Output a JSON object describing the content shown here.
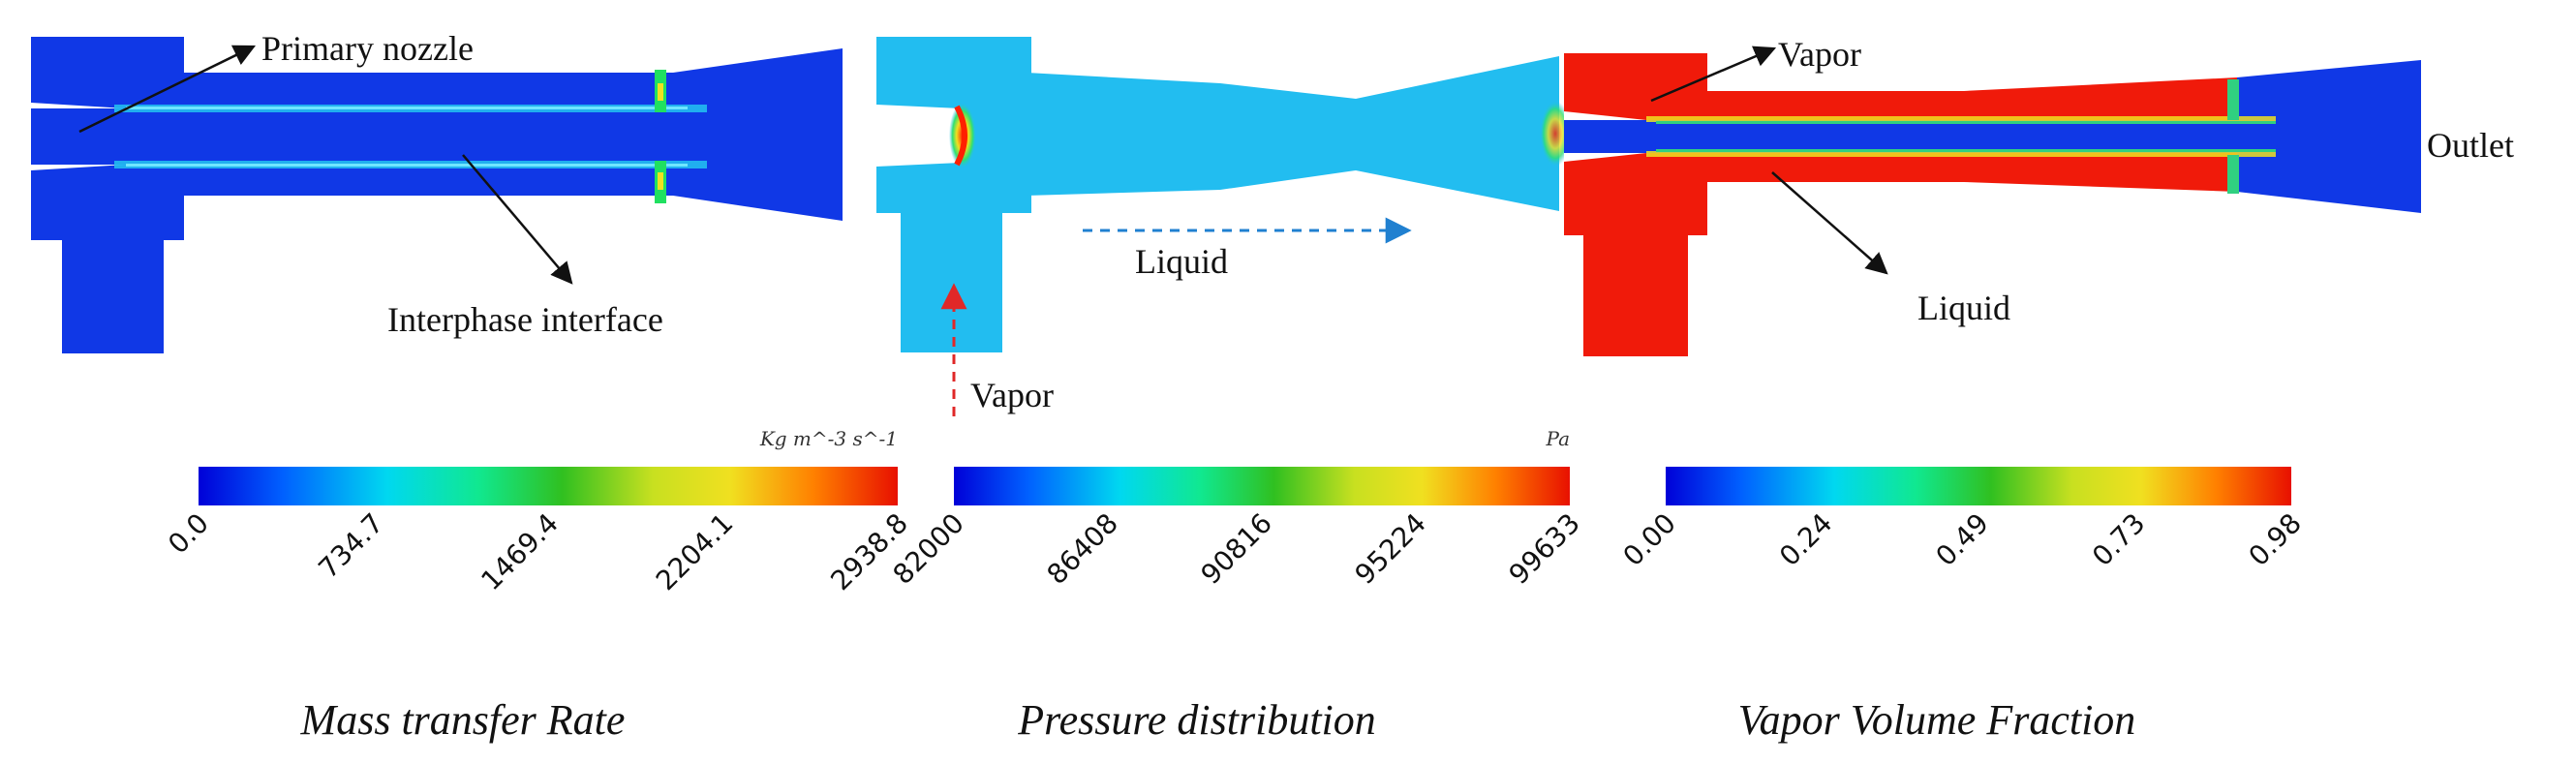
{
  "colors": {
    "deep_blue": "#1038e6",
    "light_blue": "#22bdf0",
    "red": "#f01a0a",
    "jet": [
      "#0000d8",
      "#0060ff",
      "#00d8f0",
      "#10e890",
      "#30c020",
      "#c8e020",
      "#f0e020",
      "#ff8000",
      "#e81000"
    ],
    "vapor_arrow": "#e02828",
    "liquid_arrow": "#2080d0"
  },
  "icons": [
    "pointer-arrow-icon",
    "flow-direction-arrow-icon"
  ],
  "panels": {
    "mass": {
      "labels": {
        "primary_nozzle": "Primary nozzle",
        "interface": "Interphase interface"
      },
      "colorbar": {
        "unit": "Kg m^-3 s^-1",
        "ticks": [
          "0.0",
          "734.7",
          "1469.4",
          "2204.1",
          "2938.8"
        ]
      },
      "title": "Mass transfer Rate"
    },
    "pressure": {
      "labels": {
        "liquid": "Liquid",
        "vapor": "Vapor"
      },
      "colorbar": {
        "unit": "Pa",
        "ticks": [
          "82000",
          "86408",
          "90816",
          "95224",
          "99633"
        ]
      },
      "title": "Pressure distribution"
    },
    "vapor": {
      "labels": {
        "vapor": "Vapor",
        "liquid": "Liquid",
        "outlet": "Outlet"
      },
      "colorbar": {
        "unit": "",
        "ticks": [
          "0.00",
          "0.24",
          "0.49",
          "0.73",
          "0.98"
        ]
      },
      "title": "Vapor Volume Fraction"
    }
  }
}
